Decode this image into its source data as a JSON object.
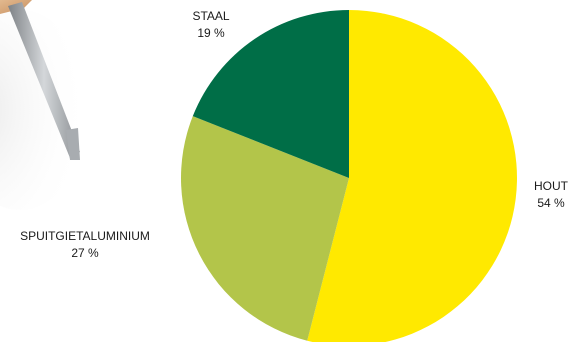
{
  "chart_data": {
    "type": "pie",
    "title": "",
    "unit": "%",
    "series": [
      {
        "slices": [
          {
            "label": "HOUT",
            "value": 54,
            "value_label": "54 %",
            "color": "#FFE900"
          },
          {
            "label": "SPUITGIETALUMINIUM",
            "value": 27,
            "value_label": "27 %",
            "color": "#B3C54A"
          },
          {
            "label": "STAAL",
            "value": 19,
            "value_label": "19 %",
            "color": "#006E47"
          }
        ]
      }
    ],
    "legend": "labels next to slices"
  },
  "decoration": {
    "photo": "table-leg-photo",
    "photo_colors": {
      "wood": "#D9A77A",
      "metal": "#9FA3A8"
    }
  }
}
